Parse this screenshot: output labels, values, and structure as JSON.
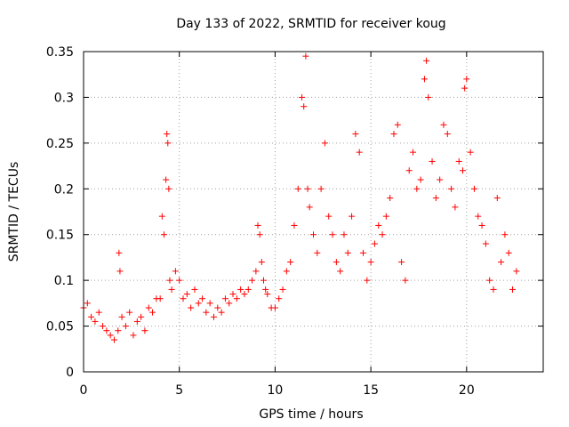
{
  "chart_data": {
    "type": "scatter",
    "title": "Day 133 of 2022, SRMTID for receiver koug",
    "xlabel": "GPS time / hours",
    "ylabel": "SRMTID / TECUs",
    "xlim": [
      0,
      24
    ],
    "ylim": [
      0,
      0.35
    ],
    "grid": true,
    "marker": "+",
    "colors": {
      "series": "#ff0000",
      "grid": "#a0a0a0",
      "axis": "#000000"
    },
    "x_ticks": [
      {
        "value": 0,
        "label": "0"
      },
      {
        "value": 5,
        "label": "5"
      },
      {
        "value": 10,
        "label": "10"
      },
      {
        "value": 15,
        "label": "15"
      },
      {
        "value": 20,
        "label": "20"
      }
    ],
    "y_ticks": [
      {
        "value": 0,
        "label": "0"
      },
      {
        "value": 0.05,
        "label": "0.05"
      },
      {
        "value": 0.1,
        "label": "0.1"
      },
      {
        "value": 0.15,
        "label": "0.15"
      },
      {
        "value": 0.2,
        "label": "0.2"
      },
      {
        "value": 0.25,
        "label": "0.25"
      },
      {
        "value": 0.3,
        "label": "0.3"
      },
      {
        "value": 0.35,
        "label": "0.35"
      }
    ],
    "series": [
      {
        "name": "SRMTID",
        "x": [
          0.0,
          0.2,
          0.4,
          0.6,
          0.8,
          1.0,
          1.2,
          1.4,
          1.6,
          1.8,
          1.85,
          1.9,
          2.0,
          2.2,
          2.4,
          2.6,
          2.8,
          3.0,
          3.2,
          3.4,
          3.6,
          3.8,
          4.0,
          4.1,
          4.2,
          4.3,
          4.35,
          4.4,
          4.45,
          4.5,
          4.6,
          4.8,
          5.0,
          5.2,
          5.4,
          5.6,
          5.8,
          6.0,
          6.2,
          6.4,
          6.6,
          6.8,
          7.0,
          7.2,
          7.4,
          7.6,
          7.8,
          8.0,
          8.2,
          8.4,
          8.6,
          8.8,
          9.0,
          9.1,
          9.2,
          9.3,
          9.4,
          9.5,
          9.6,
          9.8,
          10.0,
          10.2,
          10.4,
          10.6,
          10.8,
          11.0,
          11.2,
          11.4,
          11.5,
          11.6,
          11.7,
          11.8,
          12.0,
          12.2,
          12.4,
          12.6,
          12.8,
          13.0,
          13.2,
          13.4,
          13.6,
          13.8,
          14.0,
          14.2,
          14.4,
          14.6,
          14.8,
          15.0,
          15.2,
          15.4,
          15.6,
          15.8,
          16.0,
          16.2,
          16.4,
          16.6,
          16.8,
          17.0,
          17.2,
          17.4,
          17.6,
          17.8,
          17.9,
          18.0,
          18.2,
          18.4,
          18.6,
          18.8,
          19.0,
          19.2,
          19.4,
          19.6,
          19.8,
          19.9,
          20.0,
          20.2,
          20.4,
          20.6,
          20.8,
          21.0,
          21.2,
          21.4,
          21.6,
          21.8,
          22.0,
          22.2,
          22.4,
          22.6
        ],
        "y": [
          0.07,
          0.075,
          0.06,
          0.055,
          0.065,
          0.05,
          0.045,
          0.04,
          0.035,
          0.045,
          0.13,
          0.11,
          0.06,
          0.05,
          0.065,
          0.04,
          0.055,
          0.06,
          0.045,
          0.07,
          0.065,
          0.08,
          0.08,
          0.17,
          0.15,
          0.21,
          0.26,
          0.25,
          0.2,
          0.1,
          0.09,
          0.11,
          0.1,
          0.08,
          0.085,
          0.07,
          0.09,
          0.075,
          0.08,
          0.065,
          0.075,
          0.06,
          0.07,
          0.065,
          0.08,
          0.075,
          0.085,
          0.08,
          0.09,
          0.085,
          0.09,
          0.1,
          0.11,
          0.16,
          0.15,
          0.12,
          0.1,
          0.09,
          0.085,
          0.07,
          0.07,
          0.08,
          0.09,
          0.11,
          0.12,
          0.16,
          0.2,
          0.3,
          0.29,
          0.345,
          0.2,
          0.18,
          0.15,
          0.13,
          0.2,
          0.25,
          0.17,
          0.15,
          0.12,
          0.11,
          0.15,
          0.13,
          0.17,
          0.26,
          0.24,
          0.13,
          0.1,
          0.12,
          0.14,
          0.16,
          0.15,
          0.17,
          0.19,
          0.26,
          0.27,
          0.12,
          0.1,
          0.22,
          0.24,
          0.2,
          0.21,
          0.32,
          0.34,
          0.3,
          0.23,
          0.19,
          0.21,
          0.27,
          0.26,
          0.2,
          0.18,
          0.23,
          0.22,
          0.31,
          0.32,
          0.24,
          0.2,
          0.17,
          0.16,
          0.14,
          0.1,
          0.09,
          0.19,
          0.12,
          0.15,
          0.13,
          0.09,
          0.11
        ]
      }
    ]
  }
}
